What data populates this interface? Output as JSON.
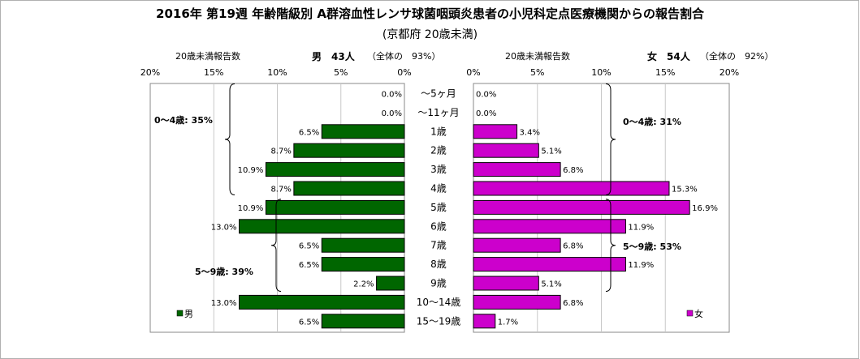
{
  "title": "2016年 第19週 年齢階級別 A群溶血性レンサ球菌咽頭炎患者の小児科定点医療機関からの報告割合",
  "subtitle": "(京都府 20歳未満)",
  "male_header": {
    "caption": "20歳未満報告数",
    "count": "男　43人",
    "share": "（全体の　93%）"
  },
  "female_header": {
    "caption": "20歳未満報告数",
    "count": "女　54人",
    "share": "（全体の　92%）"
  },
  "chart_data": {
    "type": "bar",
    "orientation": "horizontal-population-pyramid",
    "categories": [
      "〜5ヶ月",
      "〜11ヶ月",
      "1歳",
      "2歳",
      "3歳",
      "4歳",
      "5歳",
      "6歳",
      "7歳",
      "8歳",
      "9歳",
      "10〜14歳",
      "15〜19歳"
    ],
    "series": [
      {
        "name": "男",
        "color": "#006600",
        "side": "left",
        "values": [
          0.0,
          0.0,
          6.5,
          8.7,
          10.9,
          8.7,
          10.9,
          13.0,
          6.5,
          6.5,
          2.2,
          13.0,
          6.5
        ],
        "labels": [
          "0.0%",
          "0.0%",
          "6.5%",
          "8.7%",
          "10.9%",
          "8.7%",
          "10.9%",
          "13.0%",
          "6.5%",
          "6.5%",
          "2.2%",
          "13.0%",
          "6.5%"
        ]
      },
      {
        "name": "女",
        "color": "#cc00cc",
        "side": "right",
        "values": [
          0.0,
          0.0,
          3.4,
          5.1,
          6.8,
          15.3,
          16.9,
          11.9,
          6.8,
          11.9,
          5.1,
          6.8,
          1.7
        ],
        "labels": [
          "0.0%",
          "0.0%",
          "3.4%",
          "5.1%",
          "6.8%",
          "15.3%",
          "16.9%",
          "11.9%",
          "6.8%",
          "11.9%",
          "5.1%",
          "6.8%",
          "1.7%"
        ]
      }
    ],
    "xlim": [
      0,
      20
    ],
    "ticks": [
      "20%",
      "15%",
      "10%",
      "5%",
      "0%"
    ],
    "ticks_right": [
      "0%",
      "5%",
      "10%",
      "15%",
      "20%"
    ],
    "grid": true,
    "annotations": {
      "male_0_4": "0〜4歳: 35%",
      "male_5_9": "5〜9歳: 39%",
      "female_0_4": "0〜4歳: 31%",
      "female_5_9": "5〜9歳: 53%"
    },
    "legend": {
      "male": "男",
      "female": "女"
    }
  }
}
